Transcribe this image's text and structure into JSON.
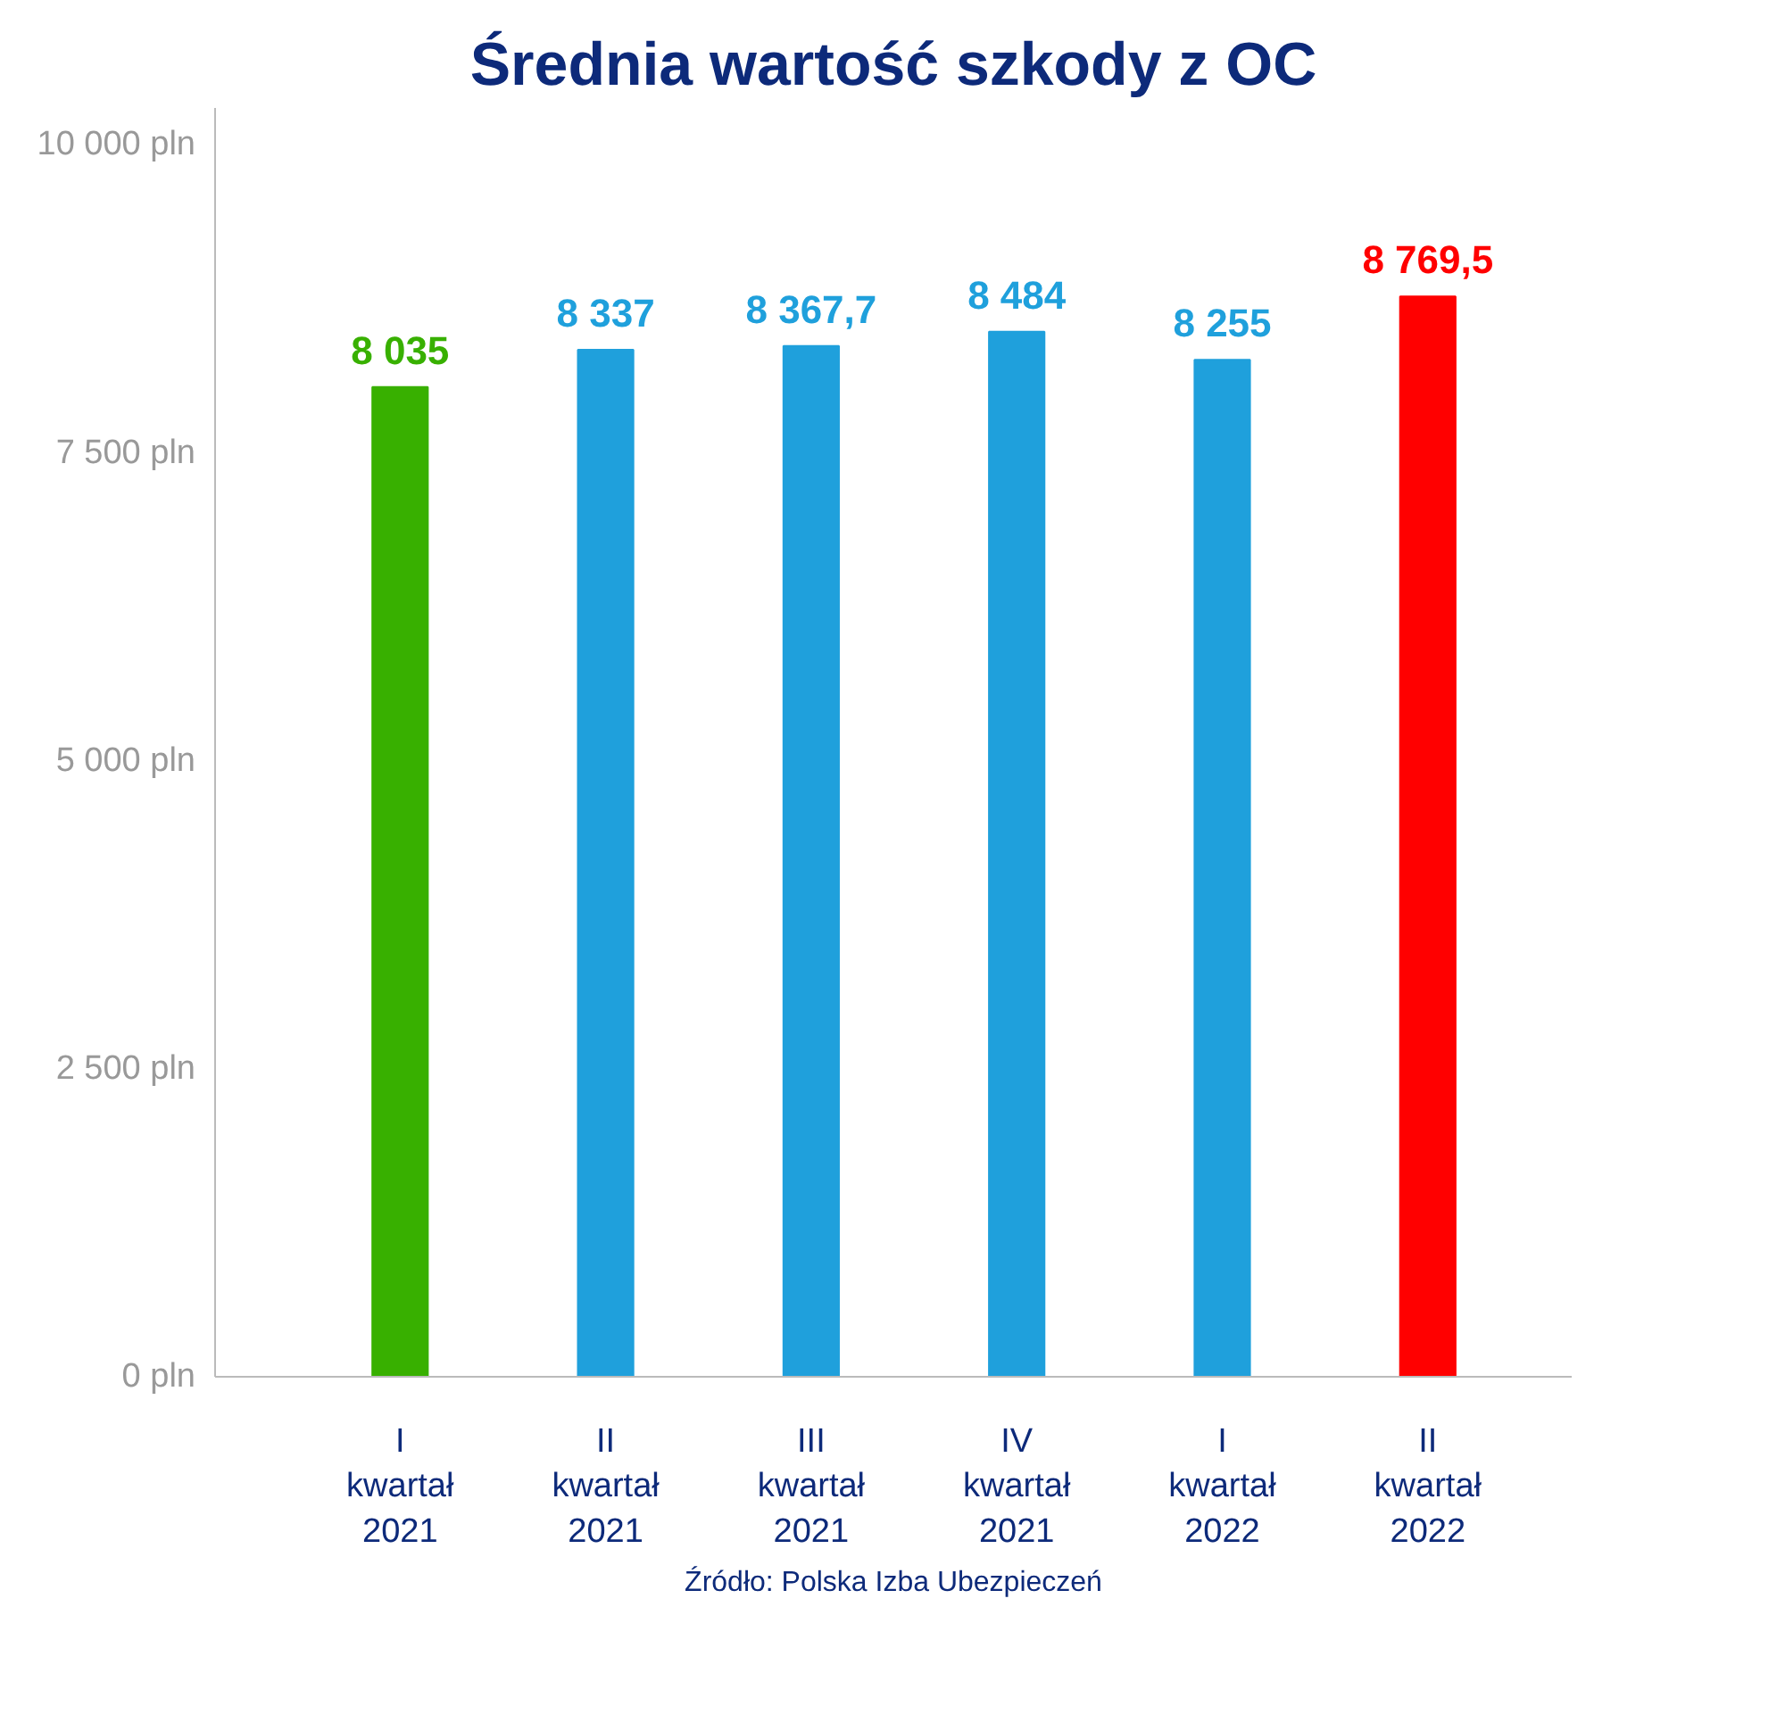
{
  "chart_data": {
    "type": "bar",
    "title": "Średnia wartość szkody z OC",
    "categories": [
      "I\nkwartał\n2021",
      "II\nkwartał\n2021",
      "III\nkwartał\n2021",
      "IV\nkwartał\n2021",
      "I\nkwartał\n2022",
      "II\nkwartał\n2022"
    ],
    "values": [
      8035,
      8337,
      8367.7,
      8484,
      8255,
      8769.5
    ],
    "colors": [
      "#38b000",
      "#1fa0dc",
      "#1fa0dc",
      "#1fa0dc",
      "#1fa0dc",
      "#ff0000"
    ],
    "value_labels": [
      "8 035",
      "8 337",
      "8 367,7",
      "8 484",
      "8 255",
      "8 769,5"
    ],
    "ylim": [
      0,
      10300
    ],
    "yticks": [
      {
        "value": 0,
        "label": "0 pln"
      },
      {
        "value": 2500,
        "label": "2 500 pln"
      },
      {
        "value": 5000,
        "label": "5 000 pln"
      },
      {
        "value": 7500,
        "label": "7 500 pln"
      },
      {
        "value": 10000,
        "label": "10 000 pln"
      }
    ],
    "grid": false,
    "annotations": [
      "Źródło: Polska Izba Ubezpieczeń"
    ]
  }
}
